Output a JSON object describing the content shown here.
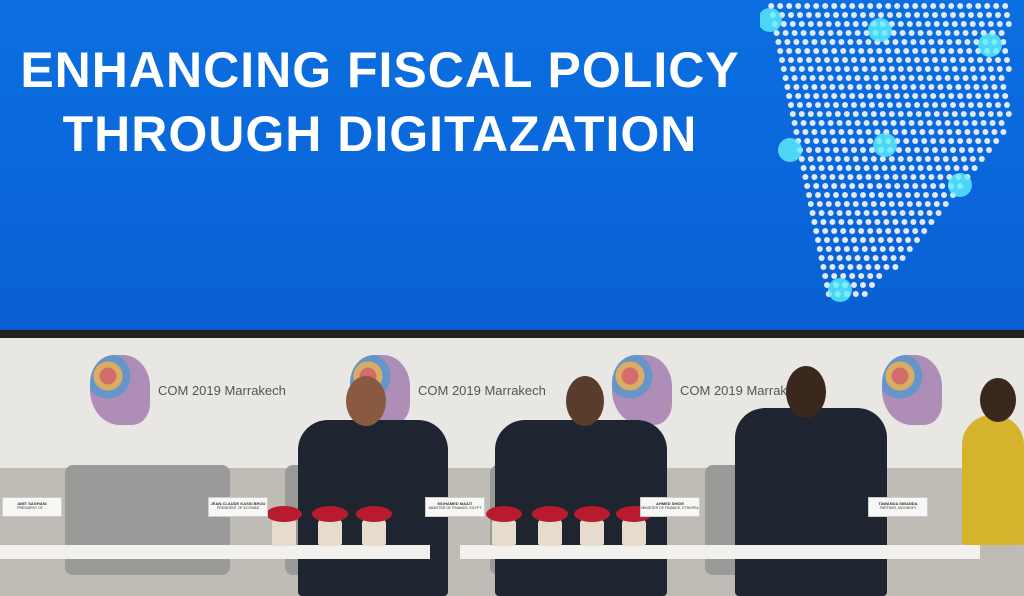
{
  "screen": {
    "title_line1": "ENHANCING FISCAL POLICY",
    "title_line2": "THROUGH DIGITAZATION",
    "background": "#0a66da"
  },
  "backdrop": {
    "logo_text": "COM 2019 Marrakech"
  },
  "nameplates": [
    {
      "name": "AMIT SAGHANI",
      "role": "PRESIDENT OF ..."
    },
    {
      "name": "JEAN-CLAUDE KASSI BROU",
      "role": "PRESIDENT OF ECOWAS"
    },
    {
      "name": "MOHAMED MAAIT",
      "role": "MINISTER OF FINANCE, EGYPT"
    },
    {
      "name": "AHMED SHIDE",
      "role": "MINISTER OF FINANCE, ETHIOPIA"
    },
    {
      "name": "TAWANDA SIBANDA",
      "role": "PARTNER, MCKINSEY"
    }
  ]
}
